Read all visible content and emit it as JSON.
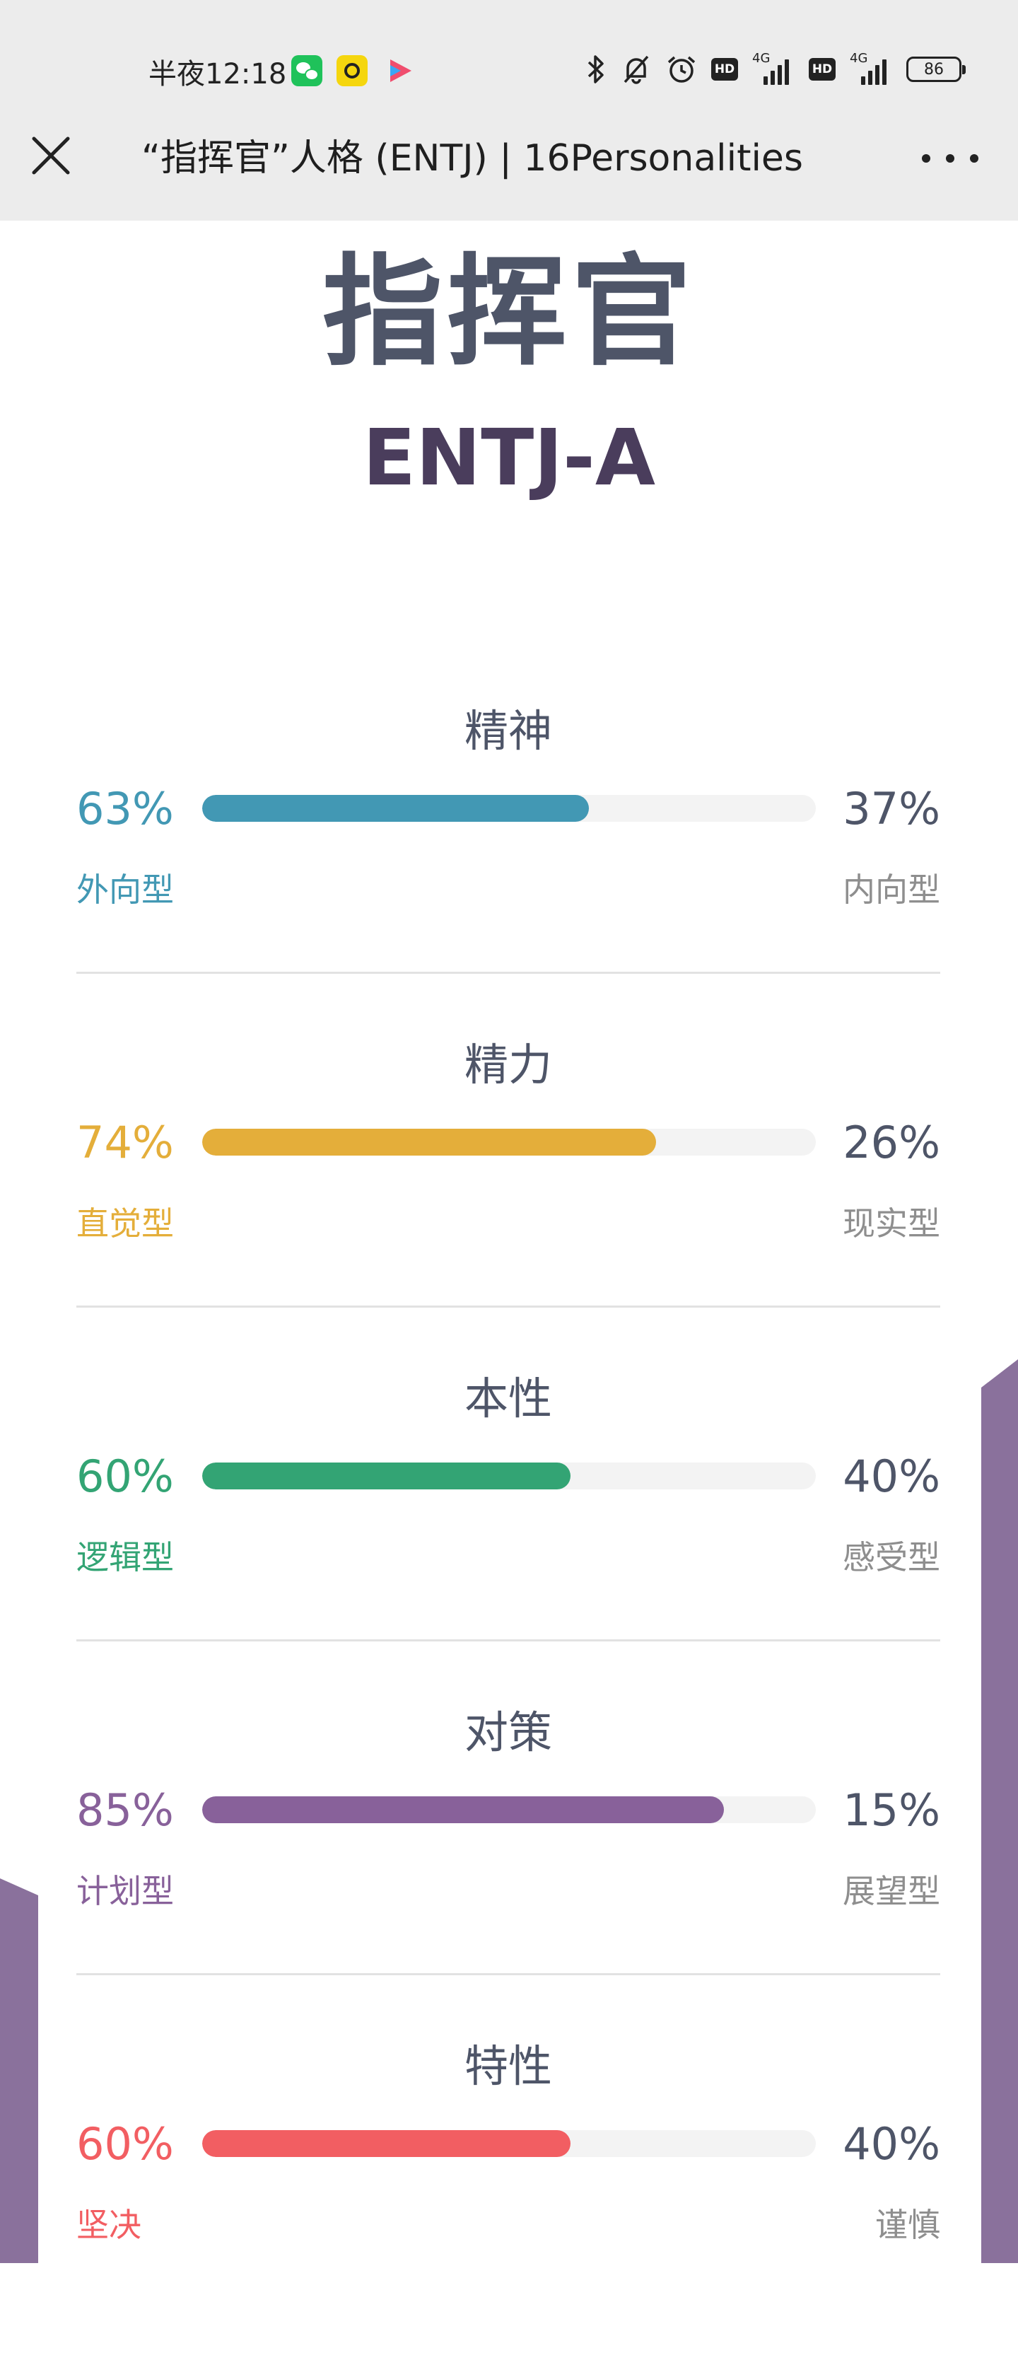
{
  "status_bar": {
    "time": "半夜12:18",
    "battery": "86",
    "network_label_1": "4G",
    "network_label_2": "4G",
    "hd_label": "HD"
  },
  "browser": {
    "title": "“指挥官”人格 (ENTJ) | 16Personalities"
  },
  "personality": {
    "name": "指挥官",
    "code": "ENTJ-A"
  },
  "traits": [
    {
      "title": "精神",
      "left_pct": "63%",
      "right_pct": "37%",
      "left_label": "外向型",
      "right_label": "内向型",
      "fill_fraction": 0.63,
      "color": "#4298b4"
    },
    {
      "title": "精力",
      "left_pct": "74%",
      "right_pct": "26%",
      "left_label": "直觉型",
      "right_label": "现实型",
      "fill_fraction": 0.74,
      "color": "#e4ae3a"
    },
    {
      "title": "本性",
      "left_pct": "60%",
      "right_pct": "40%",
      "left_label": "逻辑型",
      "right_label": "感受型",
      "fill_fraction": 0.6,
      "color": "#33a474"
    },
    {
      "title": "对策",
      "left_pct": "85%",
      "right_pct": "15%",
      "left_label": "计划型",
      "right_label": "展望型",
      "fill_fraction": 0.85,
      "color": "#88619a"
    },
    {
      "title": "特性",
      "left_pct": "60%",
      "right_pct": "40%",
      "left_label": "坚决",
      "right_label": "谨慎",
      "fill_fraction": 0.6,
      "color": "#f25e62"
    }
  ],
  "colors": {
    "title_gray": "#4e5568",
    "code_purple": "#4a3d5c",
    "deco_purple": "#8a719c",
    "track": "#f3f3f3"
  }
}
